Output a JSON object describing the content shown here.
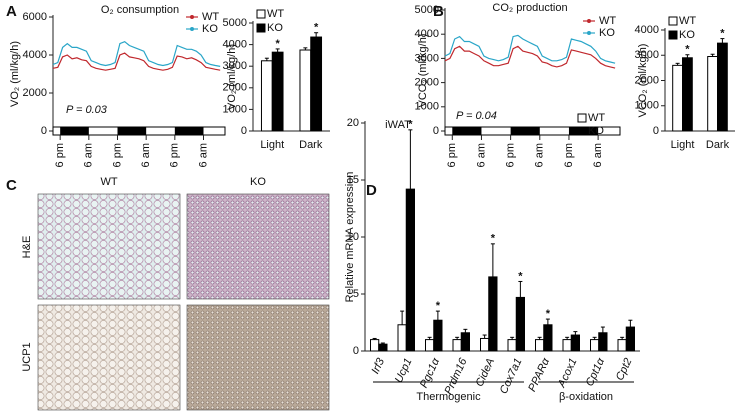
{
  "chart_data": [
    {
      "type": "line",
      "panel": "A",
      "title": "O₂ consumption",
      "y_label": "VO₂ (ml/kg/h)",
      "annotation": "P = 0.03",
      "x": [
        0,
        2,
        4,
        6,
        8,
        10,
        12,
        14,
        16,
        18,
        20,
        22,
        24,
        26,
        28,
        30,
        32,
        34,
        36,
        38,
        40,
        42,
        44,
        46,
        48,
        50,
        52,
        54,
        56,
        58,
        60,
        62,
        64,
        66,
        68,
        70
      ],
      "xlim": [
        0,
        72
      ],
      "xticks": [
        {
          "value": 3,
          "label": "6 pm"
        },
        {
          "value": 15,
          "label": "6 am"
        },
        {
          "value": 27,
          "label": "6 pm"
        },
        {
          "value": 39,
          "label": "6 am"
        },
        {
          "value": 51,
          "label": "6 pm"
        },
        {
          "value": 63,
          "label": "6 am"
        }
      ],
      "dark_periods": [
        [
          3,
          15
        ],
        [
          27,
          39
        ],
        [
          51,
          63
        ]
      ],
      "ylim": [
        0,
        6000
      ],
      "yticks": [
        0,
        2000,
        4000,
        6000
      ],
      "series": [
        {
          "name": "WT",
          "color": "#c0282d",
          "values": [
            3300,
            3350,
            3900,
            4000,
            3800,
            3850,
            3750,
            3700,
            3400,
            3300,
            3250,
            3200,
            3250,
            3300,
            4000,
            4100,
            3900,
            3850,
            3800,
            3700,
            3400,
            3300,
            3250,
            3200,
            3250,
            3350,
            3950,
            3900,
            3800,
            3850,
            3750,
            3600,
            3350,
            3300,
            3250,
            3200
          ]
        },
        {
          "name": "KO",
          "color": "#2aa6c8",
          "values": [
            3500,
            3600,
            4400,
            4600,
            4400,
            4400,
            4300,
            4200,
            3700,
            3600,
            3500,
            3450,
            3500,
            3600,
            4600,
            4700,
            4500,
            4400,
            4300,
            4200,
            3700,
            3600,
            3500,
            3450,
            3500,
            3600,
            4500,
            4400,
            4300,
            4300,
            4200,
            4000,
            3600,
            3500,
            3450,
            3400
          ]
        }
      ]
    },
    {
      "type": "bar",
      "y_label": "VO₂ (ml/kg/h)",
      "categories": [
        "Light",
        "Dark"
      ],
      "ylim": [
        0,
        5000
      ],
      "yticks": [
        0,
        1000,
        2000,
        3000,
        4000,
        5000
      ],
      "significance_mark": "*",
      "series": [
        {
          "name": "WT",
          "color": "#ffffff",
          "values": [
            3250,
            3750
          ],
          "errors": [
            120,
            100
          ],
          "significant": [
            false,
            false
          ]
        },
        {
          "name": "KO",
          "color": "#000000",
          "values": [
            3650,
            4350
          ],
          "errors": [
            150,
            200
          ],
          "significant": [
            true,
            true
          ]
        }
      ]
    },
    {
      "type": "line",
      "panel": "B",
      "title": "CO₂ production",
      "y_label": "VCO₂ (ml/kg/h)",
      "annotation": "P = 0.04",
      "x": [
        0,
        2,
        4,
        6,
        8,
        10,
        12,
        14,
        16,
        18,
        20,
        22,
        24,
        26,
        28,
        30,
        32,
        34,
        36,
        38,
        40,
        42,
        44,
        46,
        48,
        50,
        52,
        54,
        56,
        58,
        60,
        62,
        64,
        66,
        68,
        70
      ],
      "xlim": [
        0,
        72
      ],
      "xticks": [
        {
          "value": 3,
          "label": "6 pm"
        },
        {
          "value": 15,
          "label": "6 am"
        },
        {
          "value": 27,
          "label": "6 pm"
        },
        {
          "value": 39,
          "label": "6 am"
        },
        {
          "value": 51,
          "label": "6 pm"
        },
        {
          "value": 63,
          "label": "6 am"
        }
      ],
      "dark_periods": [
        [
          3,
          15
        ],
        [
          27,
          39
        ],
        [
          51,
          63
        ]
      ],
      "ylim": [
        0,
        5000
      ],
      "yticks": [
        0,
        1000,
        2000,
        3000,
        4000,
        5000
      ],
      "series": [
        {
          "name": "WT",
          "color": "#c0282d",
          "values": [
            2900,
            3000,
            3400,
            3500,
            3300,
            3300,
            3200,
            3100,
            2900,
            2800,
            2700,
            2700,
            2750,
            2800,
            3400,
            3500,
            3300,
            3250,
            3200,
            3100,
            2850,
            2800,
            2700,
            2650,
            2700,
            2800,
            3350,
            3300,
            3250,
            3200,
            3150,
            3000,
            2800,
            2700,
            2650,
            2600
          ]
        },
        {
          "name": "KO",
          "color": "#2aa6c8",
          "values": [
            3100,
            3200,
            3800,
            3900,
            3700,
            3700,
            3600,
            3500,
            3100,
            3000,
            2950,
            2900,
            2950,
            3050,
            3900,
            3950,
            3800,
            3700,
            3600,
            3500,
            3100,
            3000,
            2900,
            2900,
            2950,
            3050,
            3800,
            3750,
            3700,
            3600,
            3500,
            3300,
            3000,
            2900,
            2850,
            2800
          ]
        }
      ]
    },
    {
      "type": "bar",
      "y_label": "VCO₂ (ml/kg/h)",
      "categories": [
        "Light",
        "Dark"
      ],
      "ylim": [
        0,
        4000
      ],
      "yticks": [
        0,
        1000,
        2000,
        3000,
        4000
      ],
      "significance_mark": "*",
      "series": [
        {
          "name": "WT",
          "color": "#ffffff",
          "values": [
            2600,
            2950
          ],
          "errors": [
            80,
            90
          ],
          "significant": [
            false,
            false
          ]
        },
        {
          "name": "KO",
          "color": "#000000",
          "values": [
            2900,
            3480
          ],
          "errors": [
            120,
            180
          ],
          "significant": [
            true,
            true
          ]
        }
      ]
    },
    {
      "type": "bar",
      "panel": "D",
      "title": "iWAT",
      "y_label": "Relative mRNA expression",
      "categories": [
        "Irf3",
        "Ucp1",
        "Pgc1α",
        "Prdm16",
        "CideA",
        "Cox7a1",
        "PPARα",
        "Acox1",
        "Cpt1α",
        "Cpt2"
      ],
      "groups": [
        {
          "label": "Thermogenic",
          "first": 0,
          "last": 5
        },
        {
          "label": "β-oxidation",
          "first": 6,
          "last": 9
        }
      ],
      "ylim": [
        0,
        20
      ],
      "yticks": [
        0,
        5,
        10,
        15,
        20
      ],
      "significance_mark": "*",
      "series": [
        {
          "name": "WT",
          "color": "#ffffff",
          "values": [
            1,
            2.3,
            1,
            1,
            1.1,
            1,
            1,
            1,
            1,
            1
          ],
          "errors": [
            0.1,
            1.2,
            0.2,
            0.2,
            0.3,
            0.2,
            0.2,
            0.2,
            0.2,
            0.2
          ],
          "significant": [
            false,
            false,
            false,
            false,
            false,
            false,
            false,
            false,
            false,
            false
          ]
        },
        {
          "name": "KO",
          "color": "#000000",
          "values": [
            0.6,
            14.2,
            2.7,
            1.6,
            6.5,
            4.7,
            2.3,
            1.4,
            1.6,
            2.1
          ],
          "errors": [
            0.1,
            5.2,
            0.8,
            0.3,
            2.9,
            1.4,
            0.5,
            0.3,
            0.5,
            0.6
          ],
          "significant": [
            false,
            true,
            true,
            false,
            true,
            true,
            true,
            false,
            false,
            false
          ]
        }
      ]
    }
  ],
  "histology": {
    "panel": "C",
    "columns": [
      "WT",
      "KO"
    ],
    "rows": [
      "H&E",
      "UCP1"
    ]
  }
}
